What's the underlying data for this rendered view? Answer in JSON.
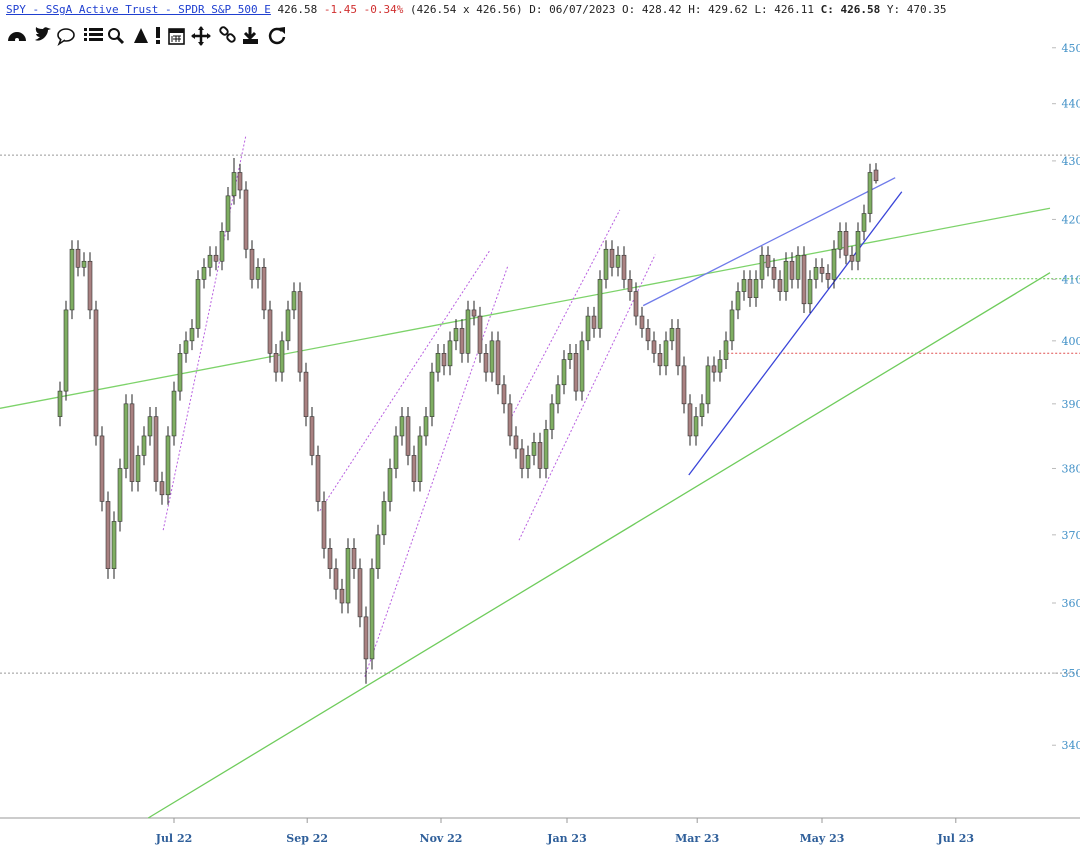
{
  "header": {
    "symbol": "SPY - SSgA Active Trust - SPDR S&P 500 E",
    "last": "426.58",
    "change": "-1.45",
    "change_pct": "-0.34%",
    "bid_ask": "(426.54 x 426.56)",
    "date": "D: 06/07/2023",
    "open": "O: 428.42",
    "high": "H: 429.62",
    "low": "L: 426.11",
    "close": "C: 426.58",
    "y": "Y: 470.35"
  },
  "chart_data": {
    "type": "candlestick",
    "log_y": true,
    "up_color": "#7fae62",
    "down_color": "#a98181",
    "x": [
      0,
      1,
      2,
      3,
      4,
      5,
      6,
      7,
      8,
      9,
      10,
      11,
      12,
      13,
      14,
      15,
      16,
      17,
      18,
      19,
      20,
      21,
      22,
      23,
      24,
      25,
      26,
      27,
      28,
      29,
      30,
      31,
      32,
      33,
      34,
      35,
      36,
      37,
      38,
      39,
      40,
      41,
      42,
      43,
      44,
      45,
      46,
      47,
      48,
      49,
      50,
      51,
      52,
      53,
      54,
      55,
      56,
      57,
      58,
      59,
      60,
      61,
      62,
      63,
      64,
      65,
      66,
      67,
      68,
      69,
      70,
      71,
      72,
      73,
      74,
      75,
      76,
      77,
      78,
      79,
      80,
      81,
      82,
      83,
      84,
      85,
      86,
      87,
      88,
      89,
      90,
      91,
      92,
      93,
      94,
      95,
      96,
      97,
      98,
      99,
      100,
      101,
      102,
      103,
      104,
      105,
      106,
      107,
      108,
      109,
      110,
      111,
      112,
      113,
      114,
      115,
      116,
      117,
      118,
      119,
      120,
      121,
      122,
      123,
      124,
      125,
      126,
      127,
      128,
      129,
      130,
      131,
      132,
      133,
      134,
      135,
      136
    ],
    "open": [
      388,
      392,
      405,
      415,
      412,
      413,
      405,
      385,
      375,
      365,
      372,
      380,
      390,
      378,
      382,
      385,
      388,
      378,
      376,
      385,
      392,
      398,
      400,
      402,
      410,
      412,
      414,
      413,
      418,
      424,
      428,
      425,
      415,
      410,
      412,
      405,
      398,
      395,
      400,
      405,
      408,
      395,
      388,
      382,
      375,
      368,
      365,
      362,
      360,
      368,
      365,
      358,
      352,
      365,
      370,
      375,
      380,
      385,
      388,
      382,
      378,
      385,
      388,
      395,
      398,
      396,
      400,
      402,
      398,
      405,
      404,
      398,
      395,
      400,
      393,
      390,
      385,
      383,
      380,
      382,
      384,
      380,
      386,
      390,
      393,
      397,
      398,
      392,
      400,
      404,
      402,
      410,
      415,
      412,
      414,
      410,
      408,
      404,
      402,
      400,
      398,
      396,
      400,
      402,
      396,
      390,
      385,
      388,
      390,
      396,
      395,
      397,
      400,
      405,
      408,
      410,
      407,
      410,
      414,
      412,
      410,
      408,
      413,
      410,
      414,
      406,
      410,
      412,
      411,
      410,
      415,
      418,
      414,
      413,
      418,
      421,
      428.42
    ],
    "high": [
      393.5,
      406.5,
      416.5,
      416.5,
      414.5,
      414.5,
      406.5,
      386.5,
      376.5,
      373.5,
      381.5,
      391.5,
      391.5,
      383.5,
      386.5,
      389.5,
      389.5,
      379.5,
      386.5,
      393.5,
      399.5,
      401.5,
      403.5,
      411.5,
      413.5,
      415.5,
      415.5,
      419.5,
      425.5,
      430.5,
      429.5,
      426.5,
      416.5,
      413.5,
      413.5,
      406.5,
      399.5,
      401.5,
      406.5,
      409.5,
      409.5,
      396.5,
      389.5,
      383.5,
      376.5,
      369.5,
      366.5,
      363.5,
      369.5,
      369.5,
      366.5,
      359.5,
      366.5,
      371.5,
      376.5,
      381.5,
      386.5,
      389.5,
      389.5,
      383.5,
      386.5,
      389.5,
      396.5,
      399.5,
      399.5,
      401.5,
      403.5,
      403.5,
      406.5,
      406.5,
      405.5,
      399.5,
      401.5,
      401.5,
      394.5,
      391.5,
      386.5,
      384.5,
      383.5,
      385.5,
      385.5,
      387.5,
      391.5,
      394.5,
      398.5,
      399.5,
      399.5,
      401.5,
      405.5,
      405.5,
      411.5,
      416.5,
      416.5,
      415.5,
      415.5,
      411.5,
      409.5,
      405.5,
      403.5,
      401.5,
      399.5,
      401.5,
      403.5,
      403.5,
      397.5,
      391.5,
      389.5,
      391.5,
      397.5,
      397.5,
      398.5,
      401.5,
      406.5,
      409.5,
      411.5,
      411.5,
      411.5,
      415.5,
      415.5,
      413.5,
      411.5,
      414.5,
      414.5,
      415.5,
      415.5,
      411.5,
      413.5,
      413.5,
      412.5,
      416.5,
      419.5,
      419.5,
      415.5,
      419.5,
      422.5,
      429.5,
      429.62
    ],
    "low": [
      386.5,
      390.5,
      403.5,
      410.5,
      410.5,
      403.5,
      383.5,
      373.5,
      363.5,
      363.5,
      370.5,
      378.5,
      376.5,
      376.5,
      380.5,
      383.5,
      376.5,
      374.5,
      374.5,
      383.5,
      390.5,
      396.5,
      398.5,
      400.5,
      408.5,
      410.5,
      411.5,
      411.5,
      416.5,
      422.5,
      423.5,
      413.5,
      408.5,
      408.5,
      403.5,
      396.5,
      393.5,
      393.5,
      398.5,
      403.5,
      393.5,
      386.5,
      380.5,
      373.5,
      366.5,
      363.5,
      360.5,
      358.5,
      358.5,
      363.5,
      356.5,
      348.5,
      350.5,
      363.5,
      368.5,
      373.5,
      378.5,
      383.5,
      380.5,
      376.5,
      376.5,
      383.5,
      386.5,
      393.5,
      394.5,
      394.5,
      398.5,
      396.5,
      396.5,
      402.5,
      396.5,
      393.5,
      393.5,
      391.5,
      388.5,
      383.5,
      381.5,
      378.5,
      378.5,
      380.5,
      378.5,
      378.5,
      384.5,
      388.5,
      391.5,
      395.5,
      390.5,
      390.5,
      398.5,
      400.5,
      400.5,
      408.5,
      410.5,
      410.5,
      408.5,
      406.5,
      402.5,
      400.5,
      398.5,
      396.5,
      394.5,
      394.5,
      398.5,
      394.5,
      388.5,
      383.5,
      383.5,
      386.5,
      388.5,
      393.5,
      393.5,
      395.5,
      398.5,
      403.5,
      406.5,
      405.5,
      405.5,
      408.5,
      410.5,
      408.5,
      406.5,
      406.5,
      408.5,
      408.5,
      404.5,
      404.5,
      408.5,
      409.5,
      408.5,
      408.5,
      413.5,
      412.5,
      411.5,
      411.5,
      416.5,
      419.5,
      426.11
    ],
    "close": [
      392,
      405,
      415,
      412,
      413,
      405,
      385,
      375,
      365,
      372,
      380,
      390,
      378,
      382,
      385,
      388,
      378,
      376,
      385,
      392,
      398,
      400,
      402,
      410,
      412,
      414,
      413,
      418,
      424,
      428,
      425,
      415,
      410,
      412,
      405,
      398,
      395,
      400,
      405,
      408,
      395,
      388,
      382,
      375,
      368,
      365,
      362,
      360,
      368,
      365,
      358,
      352,
      365,
      370,
      375,
      380,
      385,
      388,
      382,
      378,
      385,
      388,
      395,
      398,
      396,
      400,
      402,
      398,
      405,
      404,
      398,
      395,
      400,
      393,
      390,
      385,
      383,
      380,
      382,
      384,
      380,
      386,
      390,
      393,
      397,
      398,
      392,
      400,
      404,
      402,
      410,
      415,
      412,
      414,
      410,
      408,
      404,
      402,
      400,
      398,
      396,
      400,
      402,
      396,
      390,
      385,
      388,
      390,
      396,
      395,
      397,
      400,
      405,
      408,
      410,
      407,
      410,
      414,
      412,
      410,
      408,
      413,
      410,
      414,
      406,
      410,
      412,
      411,
      410,
      415,
      418,
      414,
      413,
      418,
      421,
      428,
      426.58
    ],
    "xlim": [
      -10,
      165
    ],
    "xticks": [
      {
        "value": 19,
        "label": "Jul 22"
      },
      {
        "value": 41.2,
        "label": "Sep 22"
      },
      {
        "value": 63.5,
        "label": "Nov 22"
      },
      {
        "value": 84.5,
        "label": "Jan 23"
      },
      {
        "value": 106.2,
        "label": "Mar 23"
      },
      {
        "value": 127,
        "label": "May 23"
      },
      {
        "value": 149.3,
        "label": "Jul 23"
      }
    ],
    "ylim": [
      330.2,
      450.5
    ],
    "yticks": [
      340,
      350,
      360,
      370,
      380,
      390,
      400,
      410,
      420,
      430,
      440,
      450
    ],
    "trendlines": [
      {
        "x": [
          -10,
          165
        ],
        "y": [
          389.3,
          421.9
        ],
        "color": "#7dd36a",
        "style": "solid"
      },
      {
        "x": [
          14.7,
          165
        ],
        "y": [
          330.2,
          411.1
        ],
        "color": "#6fcc5c",
        "style": "solid"
      },
      {
        "x": [
          97.2,
          139.2
        ],
        "y": [
          405.7,
          427.1
        ],
        "color": "#6f7bea",
        "style": "solid"
      },
      {
        "x": [
          104.8,
          140.3
        ],
        "y": [
          379.0,
          424.7
        ],
        "color": "#3a45d8",
        "style": "solid"
      },
      {
        "x": [
          17.2,
          31
        ],
        "y": [
          370.7,
          434.5
        ],
        "color": "#b85fe0",
        "style": "dotted"
      },
      {
        "x": [
          43.3,
          71.7
        ],
        "y": [
          373.6,
          414.9
        ],
        "color": "#b85fe0",
        "style": "dotted"
      },
      {
        "x": [
          50.8,
          74.7
        ],
        "y": [
          349.5,
          412.4
        ],
        "color": "#b85fe0",
        "style": "dotted"
      },
      {
        "x": [
          76.5,
          99.2
        ],
        "y": [
          369.2,
          414.1
        ],
        "color": "#b85fe0",
        "style": "dotted"
      },
      {
        "x": [
          75,
          93.3
        ],
        "y": [
          387.5,
          421.6
        ],
        "color": "#b85fe0",
        "style": "dotted"
      }
    ],
    "hlines": [
      {
        "x0": -10,
        "y": 431.0,
        "color": "#999999"
      },
      {
        "x0": -10,
        "y": 350,
        "color": "#999999"
      },
      {
        "x0": 129.2,
        "y": 410.1,
        "color": "#5fc24a"
      },
      {
        "x0": 111.2,
        "y": 398.0,
        "color": "#e05050"
      }
    ]
  }
}
